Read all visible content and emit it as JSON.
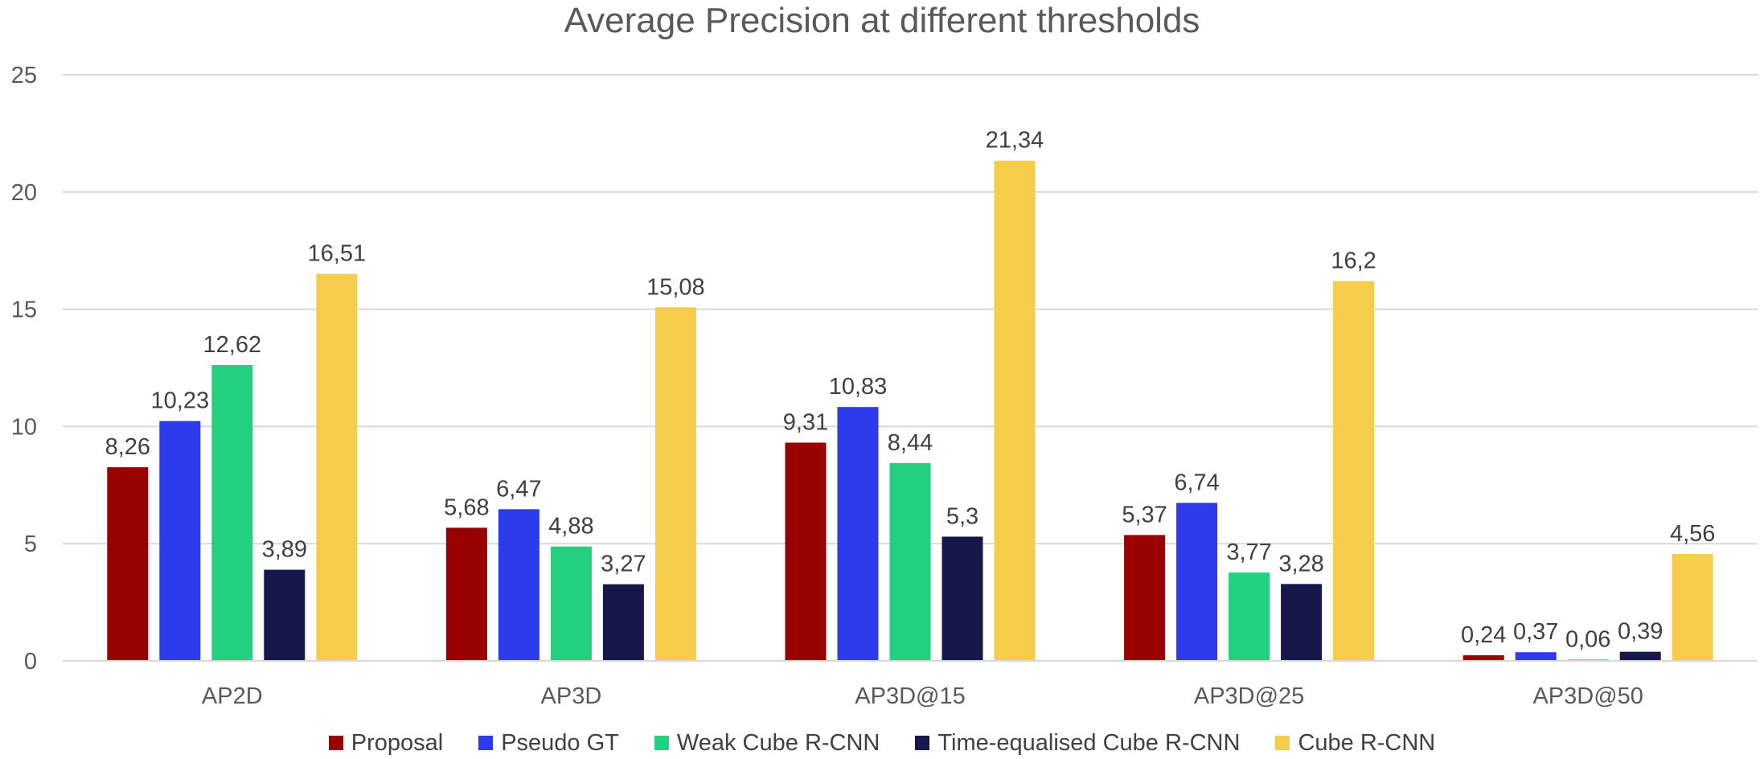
{
  "chart_data": {
    "type": "bar",
    "title": "Average Precision at different thresholds",
    "xlabel": "",
    "ylabel": "",
    "ylim": [
      0,
      25
    ],
    "yticks": [
      0,
      5,
      10,
      15,
      20,
      25
    ],
    "grid": true,
    "legend_position": "bottom",
    "decimal_separator": ",",
    "categories": [
      "AP2D",
      "AP3D",
      "AP3D@15",
      "AP3D@25",
      "AP3D@50"
    ],
    "series": [
      {
        "name": "Proposal",
        "color": "#990000",
        "values": [
          8.26,
          5.68,
          9.31,
          5.37,
          0.24
        ]
      },
      {
        "name": "Pseudo GT",
        "color": "#2E3BEA",
        "values": [
          10.23,
          6.47,
          10.83,
          6.74,
          0.37
        ]
      },
      {
        "name": "Weak Cube R-CNN",
        "color": "#22D07F",
        "values": [
          12.62,
          4.88,
          8.44,
          3.77,
          0.06
        ]
      },
      {
        "name": "Time-equalised Cube R-CNN",
        "color": "#16174A",
        "values": [
          3.89,
          3.27,
          5.3,
          3.28,
          0.39
        ]
      },
      {
        "name": "Cube R-CNN",
        "color": "#F5CD4B",
        "values": [
          16.51,
          15.08,
          21.34,
          16.2,
          4.56
        ]
      }
    ]
  }
}
